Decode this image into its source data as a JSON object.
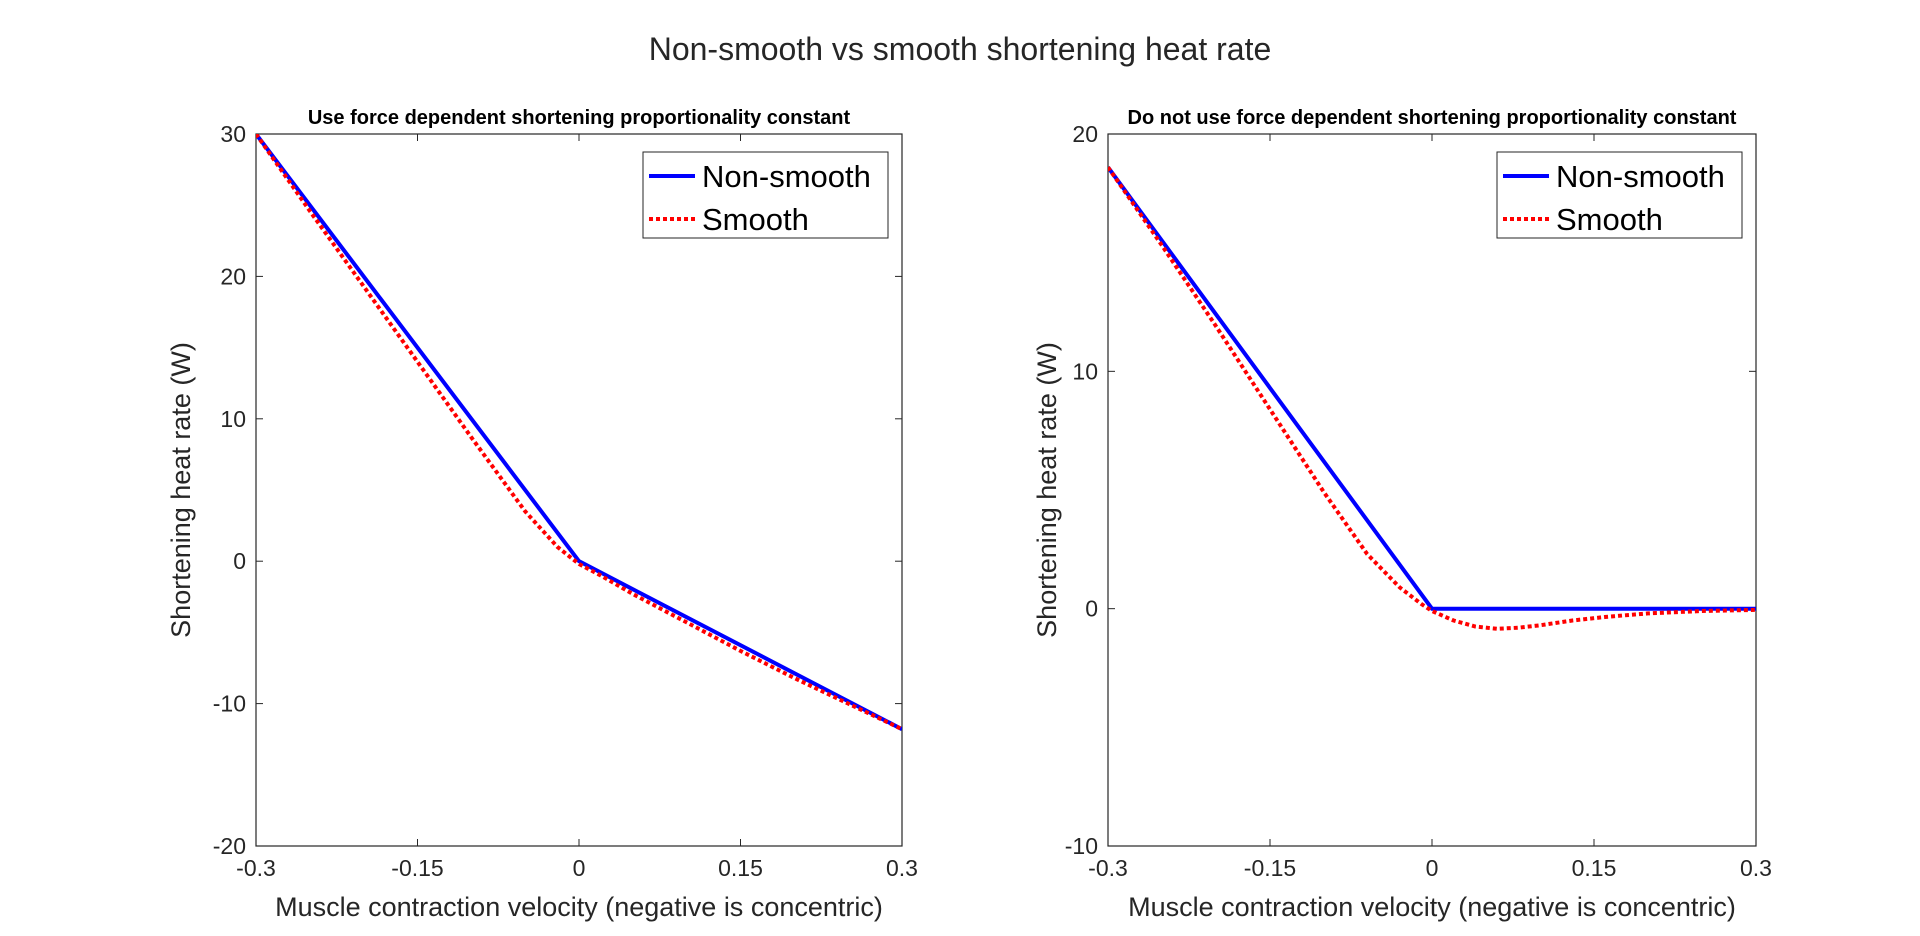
{
  "figure": {
    "suptitle": "Non-smooth vs smooth shortening heat rate"
  },
  "colors": {
    "non_smooth": "#0000ff",
    "smooth": "#ff0000",
    "axes": "#262626"
  },
  "chart_data": [
    {
      "type": "line",
      "title": "Use force dependent shortening proportionality constant",
      "xlabel": "Muscle contraction velocity (negative is concentric)",
      "ylabel": "Shortening heat rate (W)",
      "xlim": [
        -0.3,
        0.3
      ],
      "ylim": [
        -20,
        30
      ],
      "xticks": [
        -0.3,
        -0.15,
        0,
        0.15,
        0.3
      ],
      "xtick_labels": [
        "-0.3",
        "-0.15",
        "0",
        "0.15",
        "0.3"
      ],
      "yticks": [
        -20,
        -10,
        0,
        10,
        20,
        30
      ],
      "ytick_labels": [
        "-20",
        "-10",
        "0",
        "10",
        "20",
        "30"
      ],
      "grid": false,
      "legend": "top-right",
      "series": [
        {
          "name": "Non-smooth",
          "style": "solid",
          "x": [
            -0.3,
            0,
            0.3
          ],
          "y": [
            30,
            0,
            -11.8
          ]
        },
        {
          "name": "Smooth",
          "style": "dotted",
          "x": [
            -0.3,
            -0.25,
            -0.2,
            -0.15,
            -0.1,
            -0.05,
            -0.02,
            0,
            0.02,
            0.05,
            0.1,
            0.15,
            0.2,
            0.25,
            0.3
          ],
          "y": [
            30,
            24.6,
            19.3,
            14.0,
            8.7,
            3.5,
            1.0,
            -0.2,
            -1.0,
            -2.3,
            -4.3,
            -6.3,
            -8.2,
            -10.0,
            -11.8
          ]
        }
      ]
    },
    {
      "type": "line",
      "title": "Do not use force dependent shortening proportionality constant",
      "xlabel": "Muscle contraction velocity (negative is concentric)",
      "ylabel": "Shortening heat rate (W)",
      "xlim": [
        -0.3,
        0.3
      ],
      "ylim": [
        -10,
        20
      ],
      "xticks": [
        -0.3,
        -0.15,
        0,
        0.15,
        0.3
      ],
      "xtick_labels": [
        "-0.3",
        "-0.15",
        "0",
        "0.15",
        "0.3"
      ],
      "yticks": [
        -10,
        0,
        10,
        20
      ],
      "ytick_labels": [
        "-10",
        "0",
        "10",
        "20"
      ],
      "grid": false,
      "legend": "top-right",
      "series": [
        {
          "name": "Non-smooth",
          "style": "solid",
          "x": [
            -0.3,
            0,
            0.3
          ],
          "y": [
            18.6,
            0,
            0
          ]
        },
        {
          "name": "Smooth",
          "style": "dotted",
          "x": [
            -0.3,
            -0.25,
            -0.2,
            -0.15,
            -0.1,
            -0.06,
            -0.03,
            -0.01,
            0,
            0.02,
            0.04,
            0.06,
            0.08,
            0.1,
            0.13,
            0.16,
            0.2,
            0.25,
            0.3
          ],
          "y": [
            18.6,
            15.3,
            11.9,
            8.4,
            4.9,
            2.3,
            0.9,
            0.2,
            -0.1,
            -0.5,
            -0.75,
            -0.85,
            -0.8,
            -0.7,
            -0.5,
            -0.35,
            -0.2,
            -0.1,
            -0.05
          ]
        }
      ]
    }
  ]
}
